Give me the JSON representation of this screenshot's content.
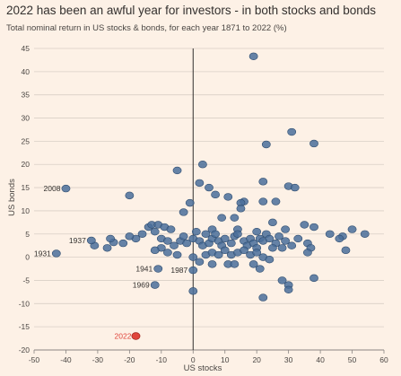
{
  "title": "2022 has been an awful year for investors - in both stocks and bonds",
  "subtitle": "Total nominal return in US stocks & bonds, for each year 1871 to 2022 (%)",
  "chart_data": {
    "type": "scatter",
    "title": "2022 has been an awful year for investors - in both stocks and bonds",
    "subtitle": "Total nominal return in US stocks & bonds, for each year 1871 to 2022 (%)",
    "xlabel": "US stocks",
    "ylabel": "US bonds",
    "xlim": [
      -50,
      60
    ],
    "ylim": [
      -20,
      45
    ],
    "xticks": [
      -50,
      -40,
      -30,
      -20,
      -10,
      0,
      10,
      20,
      30,
      40,
      50,
      60
    ],
    "yticks": [
      -20,
      -15,
      -10,
      -5,
      0,
      5,
      10,
      15,
      20,
      25,
      30,
      35,
      40,
      45
    ],
    "grid": "horizontal",
    "colors": {
      "points": "#4a6f9a",
      "points_edge": "#2f4d70",
      "highlight": "#e0453b",
      "highlight_edge": "#9e1f18"
    },
    "series": [
      {
        "values": [
          [
            19,
            43.3
          ],
          [
            31,
            27
          ],
          [
            38,
            24.5
          ],
          [
            23,
            24.3
          ],
          [
            3,
            20
          ],
          [
            -5,
            18.7
          ],
          [
            22,
            16.3
          ],
          [
            2,
            16
          ],
          [
            5,
            15
          ],
          [
            30,
            15.3
          ],
          [
            32,
            15
          ],
          [
            7,
            13.5
          ],
          [
            11,
            13
          ],
          [
            -20,
            13.3
          ],
          [
            16,
            12
          ],
          [
            15,
            11.7
          ],
          [
            22,
            12
          ],
          [
            26,
            12
          ],
          [
            -1,
            11.7
          ],
          [
            15,
            10.5
          ],
          [
            -3,
            9.7
          ],
          [
            13,
            8.5
          ],
          [
            9,
            8.5
          ],
          [
            25,
            7.5
          ],
          [
            35,
            7
          ],
          [
            29,
            6
          ],
          [
            38,
            6.5
          ],
          [
            43,
            5
          ],
          [
            47,
            4.5
          ],
          [
            50,
            6
          ],
          [
            54,
            5
          ],
          [
            4,
            5
          ],
          [
            6,
            6
          ],
          [
            14,
            6
          ],
          [
            20,
            5.5
          ],
          [
            -14,
            6.5
          ],
          [
            -13,
            7
          ],
          [
            -11,
            7
          ],
          [
            -9,
            6.5
          ],
          [
            -7,
            6
          ],
          [
            -16,
            5
          ],
          [
            -18,
            4
          ],
          [
            -20,
            4.5
          ],
          [
            -22,
            3
          ],
          [
            -25,
            3.2
          ],
          [
            -27,
            2
          ],
          [
            -26,
            4
          ],
          [
            -31,
            2.5
          ],
          [
            -12,
            5.5
          ],
          [
            -10,
            4
          ],
          [
            -8,
            3.5
          ],
          [
            -6,
            2.5
          ],
          [
            -4,
            3.5
          ],
          [
            -3,
            4.5
          ],
          [
            -2,
            3
          ],
          [
            0,
            4
          ],
          [
            1,
            5.5
          ],
          [
            2,
            3.5
          ],
          [
            3,
            2.5
          ],
          [
            5,
            3
          ],
          [
            6,
            4
          ],
          [
            7,
            5
          ],
          [
            8,
            3.5
          ],
          [
            9,
            2.5
          ],
          [
            10,
            4
          ],
          [
            12,
            3
          ],
          [
            13,
            4.5
          ],
          [
            14,
            5
          ],
          [
            16,
            3.5
          ],
          [
            17,
            2.5
          ],
          [
            18,
            4
          ],
          [
            19,
            3
          ],
          [
            20,
            2
          ],
          [
            21,
            4
          ],
          [
            22,
            3.5
          ],
          [
            23,
            5
          ],
          [
            24,
            4
          ],
          [
            26,
            3
          ],
          [
            27,
            4.5
          ],
          [
            28,
            2
          ],
          [
            29,
            3.5
          ],
          [
            31,
            2.5
          ],
          [
            33,
            4
          ],
          [
            36,
            3
          ],
          [
            37,
            2
          ],
          [
            46,
            4
          ],
          [
            48,
            1.5
          ],
          [
            -10,
            2
          ],
          [
            -12,
            1.5
          ],
          [
            -8,
            1
          ],
          [
            -5,
            0.5
          ],
          [
            0,
            0
          ],
          [
            2,
            -1
          ],
          [
            4,
            0.5
          ],
          [
            6,
            1
          ],
          [
            8,
            0.5
          ],
          [
            10,
            1.5
          ],
          [
            12,
            0.5
          ],
          [
            14,
            1
          ],
          [
            16,
            1.5
          ],
          [
            18,
            0.5
          ],
          [
            20,
            1
          ],
          [
            22,
            0
          ],
          [
            24,
            -0.5
          ],
          [
            25,
            2
          ],
          [
            11,
            -1.5
          ],
          [
            13,
            -1.5
          ],
          [
            6,
            -1.5
          ],
          [
            19,
            -1.5
          ],
          [
            21,
            -2.5
          ],
          [
            28,
            -5
          ],
          [
            30,
            -6
          ],
          [
            30,
            -7
          ],
          [
            38,
            -4.5
          ],
          [
            36,
            1
          ],
          [
            22,
            -8.7
          ],
          [
            0,
            -7.3
          ],
          [
            -40,
            14.8
          ],
          [
            -32,
            3.6
          ],
          [
            -43,
            0.8
          ],
          [
            -11,
            -2.5
          ],
          [
            0,
            -2.8
          ],
          [
            -12,
            -6
          ]
        ]
      }
    ],
    "highlight": {
      "label": "2022",
      "x": -18,
      "y": -17
    },
    "annotations": [
      {
        "label": "2008",
        "x": -40,
        "y": 14.8
      },
      {
        "label": "1937",
        "x": -32,
        "y": 3.6
      },
      {
        "label": "1931",
        "x": -43,
        "y": 0.8
      },
      {
        "label": "1941",
        "x": -11,
        "y": -2.5
      },
      {
        "label": "1987",
        "x": 0,
        "y": -2.8
      },
      {
        "label": "1969",
        "x": -12,
        "y": -6
      }
    ]
  }
}
